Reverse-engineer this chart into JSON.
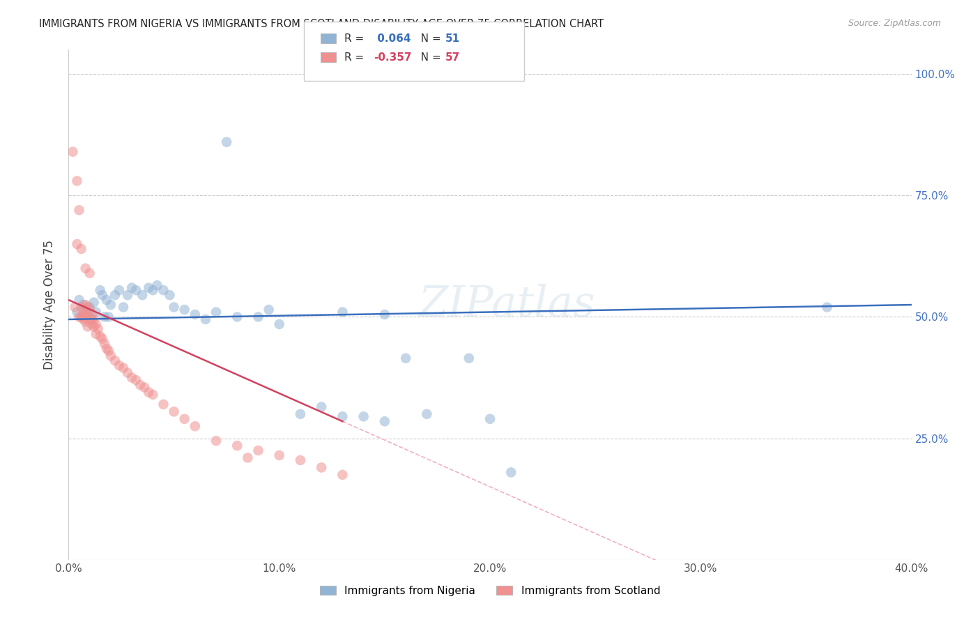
{
  "title": "IMMIGRANTS FROM NIGERIA VS IMMIGRANTS FROM SCOTLAND DISABILITY AGE OVER 75 CORRELATION CHART",
  "source": "Source: ZipAtlas.com",
  "ylabel": "Disability Age Over 75",
  "xlim": [
    0.0,
    0.4
  ],
  "ylim": [
    0.0,
    1.05
  ],
  "xtick_labels": [
    "0.0%",
    "",
    "10.0%",
    "",
    "20.0%",
    "",
    "30.0%",
    "",
    "40.0%"
  ],
  "xtick_vals": [
    0.0,
    0.05,
    0.1,
    0.15,
    0.2,
    0.25,
    0.3,
    0.35,
    0.4
  ],
  "ytick_labels": [
    "25.0%",
    "50.0%",
    "75.0%",
    "100.0%"
  ],
  "ytick_vals": [
    0.25,
    0.5,
    0.75,
    1.0
  ],
  "nigeria_color": "#92b4d4",
  "scotland_color": "#f09090",
  "nigeria_line_color": "#3a6fbd",
  "scotland_line_color": "#d44060",
  "scotland_dash_color": "#f0b0c0",
  "watermark": "ZIPatlas",
  "nigeria_R": 0.064,
  "nigeria_N": 51,
  "scotland_R": -0.357,
  "scotland_N": 57,
  "nigeria_points": [
    [
      0.004,
      0.51
    ],
    [
      0.005,
      0.535
    ],
    [
      0.006,
      0.5
    ],
    [
      0.007,
      0.525
    ],
    [
      0.008,
      0.515
    ],
    [
      0.009,
      0.505
    ],
    [
      0.01,
      0.52
    ],
    [
      0.011,
      0.495
    ],
    [
      0.012,
      0.53
    ],
    [
      0.013,
      0.51
    ],
    [
      0.015,
      0.555
    ],
    [
      0.016,
      0.545
    ],
    [
      0.017,
      0.5
    ],
    [
      0.018,
      0.535
    ],
    [
      0.019,
      0.5
    ],
    [
      0.02,
      0.525
    ],
    [
      0.022,
      0.545
    ],
    [
      0.024,
      0.555
    ],
    [
      0.026,
      0.52
    ],
    [
      0.028,
      0.545
    ],
    [
      0.03,
      0.56
    ],
    [
      0.032,
      0.555
    ],
    [
      0.035,
      0.545
    ],
    [
      0.038,
      0.56
    ],
    [
      0.04,
      0.555
    ],
    [
      0.042,
      0.565
    ],
    [
      0.045,
      0.555
    ],
    [
      0.048,
      0.545
    ],
    [
      0.05,
      0.52
    ],
    [
      0.055,
      0.515
    ],
    [
      0.06,
      0.505
    ],
    [
      0.065,
      0.495
    ],
    [
      0.07,
      0.51
    ],
    [
      0.08,
      0.5
    ],
    [
      0.09,
      0.5
    ],
    [
      0.095,
      0.515
    ],
    [
      0.1,
      0.485
    ],
    [
      0.11,
      0.3
    ],
    [
      0.12,
      0.315
    ],
    [
      0.13,
      0.295
    ],
    [
      0.14,
      0.295
    ],
    [
      0.15,
      0.285
    ],
    [
      0.16,
      0.415
    ],
    [
      0.17,
      0.3
    ],
    [
      0.19,
      0.415
    ],
    [
      0.2,
      0.29
    ],
    [
      0.21,
      0.18
    ],
    [
      0.36,
      0.52
    ],
    [
      0.075,
      0.86
    ],
    [
      0.13,
      0.51
    ],
    [
      0.15,
      0.505
    ]
  ],
  "scotland_points": [
    [
      0.002,
      0.84
    ],
    [
      0.003,
      0.52
    ],
    [
      0.004,
      0.78
    ],
    [
      0.005,
      0.72
    ],
    [
      0.005,
      0.5
    ],
    [
      0.006,
      0.52
    ],
    [
      0.006,
      0.5
    ],
    [
      0.007,
      0.515
    ],
    [
      0.007,
      0.5
    ],
    [
      0.007,
      0.495
    ],
    [
      0.008,
      0.525
    ],
    [
      0.008,
      0.505
    ],
    [
      0.008,
      0.49
    ],
    [
      0.009,
      0.52
    ],
    [
      0.009,
      0.5
    ],
    [
      0.009,
      0.48
    ],
    [
      0.01,
      0.515
    ],
    [
      0.01,
      0.495
    ],
    [
      0.011,
      0.505
    ],
    [
      0.011,
      0.485
    ],
    [
      0.012,
      0.495
    ],
    [
      0.012,
      0.48
    ],
    [
      0.013,
      0.485
    ],
    [
      0.013,
      0.465
    ],
    [
      0.014,
      0.475
    ],
    [
      0.015,
      0.46
    ],
    [
      0.016,
      0.455
    ],
    [
      0.017,
      0.445
    ],
    [
      0.018,
      0.435
    ],
    [
      0.019,
      0.43
    ],
    [
      0.02,
      0.42
    ],
    [
      0.022,
      0.41
    ],
    [
      0.024,
      0.4
    ],
    [
      0.026,
      0.395
    ],
    [
      0.028,
      0.385
    ],
    [
      0.03,
      0.375
    ],
    [
      0.032,
      0.37
    ],
    [
      0.034,
      0.36
    ],
    [
      0.036,
      0.355
    ],
    [
      0.038,
      0.345
    ],
    [
      0.04,
      0.34
    ],
    [
      0.045,
      0.32
    ],
    [
      0.05,
      0.305
    ],
    [
      0.055,
      0.29
    ],
    [
      0.06,
      0.275
    ],
    [
      0.07,
      0.245
    ],
    [
      0.08,
      0.235
    ],
    [
      0.09,
      0.225
    ],
    [
      0.1,
      0.215
    ],
    [
      0.11,
      0.205
    ],
    [
      0.12,
      0.19
    ],
    [
      0.13,
      0.175
    ],
    [
      0.004,
      0.65
    ],
    [
      0.006,
      0.64
    ],
    [
      0.008,
      0.6
    ],
    [
      0.01,
      0.59
    ],
    [
      0.085,
      0.21
    ]
  ]
}
